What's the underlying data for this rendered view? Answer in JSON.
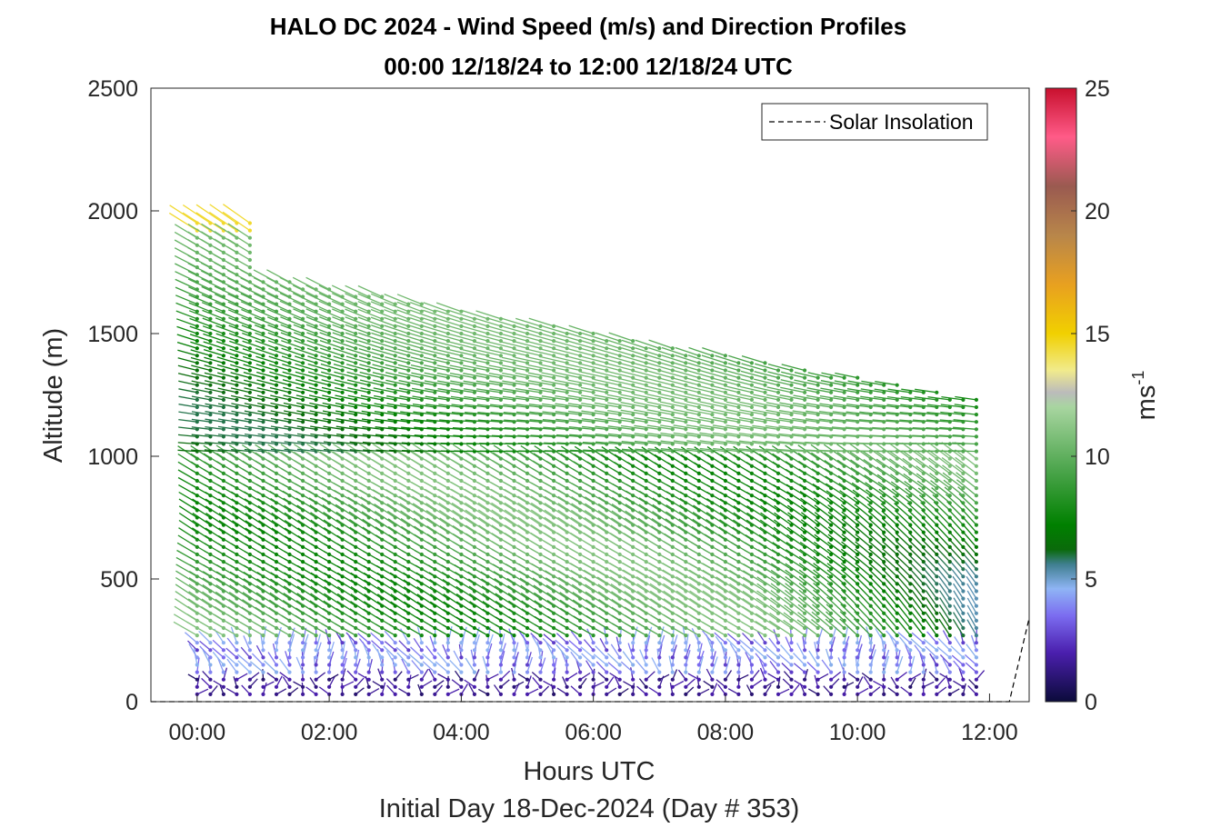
{
  "chart_data": {
    "type": "wind-barb-profile",
    "title_line1": "HALO DC 2024 - Wind Speed (m/s) and Direction Profiles",
    "title_line2": "00:00 12/18/24 to 12:00 12/18/24  UTC",
    "xlabel": "Hours UTC",
    "xlabel2": "Initial Day 18-Dec-2024 (Day # 353)",
    "ylabel": "Altitude (m)",
    "x_range_hours": [
      -0.7,
      12.6
    ],
    "y_range_m": [
      0,
      2500
    ],
    "x_ticks": [
      {
        "hour": 0,
        "label": "00:00"
      },
      {
        "hour": 2,
        "label": "02:00"
      },
      {
        "hour": 4,
        "label": "04:00"
      },
      {
        "hour": 6,
        "label": "06:00"
      },
      {
        "hour": 8,
        "label": "08:00"
      },
      {
        "hour": 10,
        "label": "10:00"
      },
      {
        "hour": 12,
        "label": "12:00"
      }
    ],
    "y_ticks": [
      {
        "value": 0,
        "label": "0"
      },
      {
        "value": 500,
        "label": "500"
      },
      {
        "value": 1000,
        "label": "1000"
      },
      {
        "value": 1500,
        "label": "1500"
      },
      {
        "value": 2000,
        "label": "2000"
      },
      {
        "value": 2500,
        "label": "2500"
      }
    ],
    "colorbar": {
      "label_base": "ms",
      "label_exp": "-1",
      "range": [
        0,
        25
      ],
      "ticks": [
        {
          "value": 0,
          "label": "0"
        },
        {
          "value": 5,
          "label": "5"
        },
        {
          "value": 10,
          "label": "10"
        },
        {
          "value": 15,
          "label": "15"
        },
        {
          "value": 20,
          "label": "20"
        },
        {
          "value": 25,
          "label": "25"
        }
      ],
      "stops": [
        {
          "v": 0,
          "c": "#0b0b3a"
        },
        {
          "v": 2,
          "c": "#4b1fae"
        },
        {
          "v": 3.5,
          "c": "#7b6cf0"
        },
        {
          "v": 4.6,
          "c": "#8fb4f5"
        },
        {
          "v": 5.6,
          "c": "#3f7f8f"
        },
        {
          "v": 6.2,
          "c": "#0a6a0a"
        },
        {
          "v": 7.2,
          "c": "#008000"
        },
        {
          "v": 9.5,
          "c": "#4ea64e"
        },
        {
          "v": 12,
          "c": "#a8d5a0"
        },
        {
          "v": 12.6,
          "c": "#bbbbbb"
        },
        {
          "v": 13.5,
          "c": "#f1eb8c"
        },
        {
          "v": 15,
          "c": "#f1d000"
        },
        {
          "v": 17,
          "c": "#e8a020"
        },
        {
          "v": 19,
          "c": "#b8864a"
        },
        {
          "v": 21,
          "c": "#9a5a50"
        },
        {
          "v": 23,
          "c": "#ff5b88"
        },
        {
          "v": 25,
          "c": "#c8102e"
        }
      ]
    },
    "legend": {
      "label": "Solar Insolation",
      "position": "top-right",
      "style": "dashed-black"
    },
    "solar_insolation_curve": [
      {
        "hour": -0.7,
        "alt": 0
      },
      {
        "hour": 12.3,
        "alt": 0
      },
      {
        "hour": 12.6,
        "alt": 340
      }
    ],
    "profiles_interval_hours": 0.2,
    "profiles_first_hour": 0,
    "profiles_last_hour": 11.8,
    "range_gate_m": 30
  }
}
